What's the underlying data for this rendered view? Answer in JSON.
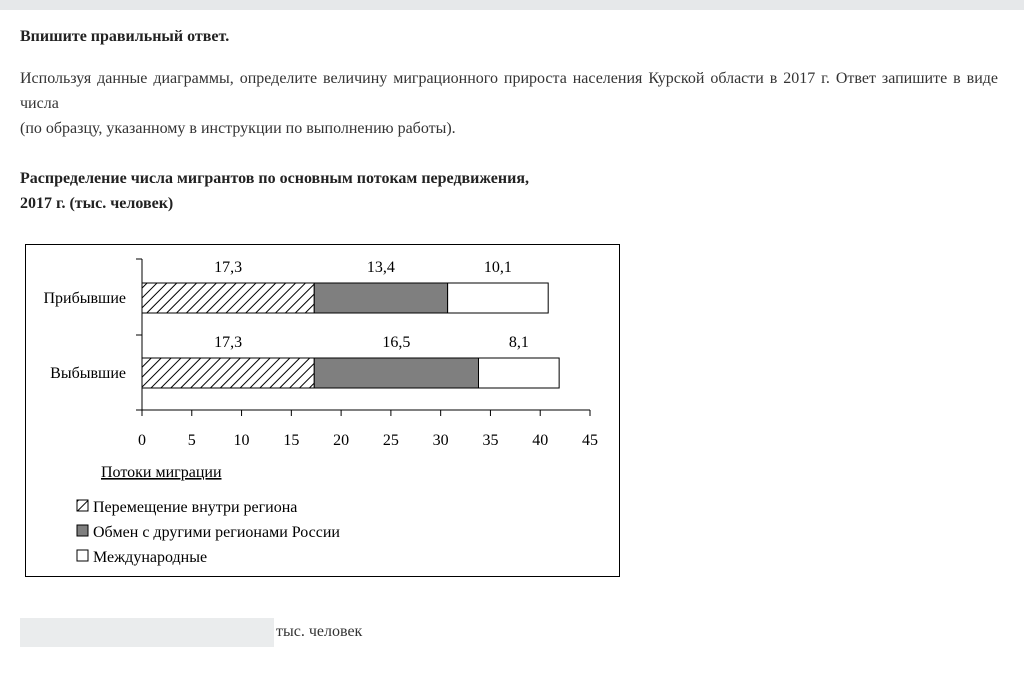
{
  "task": {
    "instruction": "Впишите правильный ответ.",
    "question_line1": "Используя данные диаграммы, определите величину миграционного прироста населения Курской области в 2017 г. Ответ запишите в виде числа",
    "question_line2": "(по образцу, указанному в инструкции по выполнению работы).",
    "chart_title_line1": "Распределение числа мигрантов по основным потокам передвижения,",
    "chart_title_line2": "2017 г. (тыс. человек)"
  },
  "chart_data": {
    "type": "bar",
    "orientation": "horizontal",
    "stacked": true,
    "categories": [
      "Прибывшие",
      "Выбывшие"
    ],
    "series": [
      {
        "name": "Перемещение внутри региона",
        "values": [
          17.3,
          17.3
        ],
        "labels": [
          "17,3",
          "17,3"
        ],
        "fill": "hatched"
      },
      {
        "name": "Обмен с другими регионами России",
        "values": [
          13.4,
          16.5
        ],
        "labels": [
          "13,4",
          "16,5"
        ],
        "fill": "#7f7f7f"
      },
      {
        "name": "Международные",
        "values": [
          10.1,
          8.1
        ],
        "labels": [
          "10,1",
          "8,1"
        ],
        "fill": "#ffffff"
      }
    ],
    "xlim": [
      0,
      45
    ],
    "xticks": [
      0,
      5,
      10,
      15,
      20,
      25,
      30,
      35,
      40,
      45
    ],
    "xlabel": "Потоки миграции",
    "legend_placement": "bottom-left",
    "grid": false
  },
  "answer": {
    "value": "",
    "unit": "тыс. человек"
  },
  "colors": {
    "topbar": "#e6e8ea",
    "input_background": "#eaeced",
    "text": "#333333"
  }
}
